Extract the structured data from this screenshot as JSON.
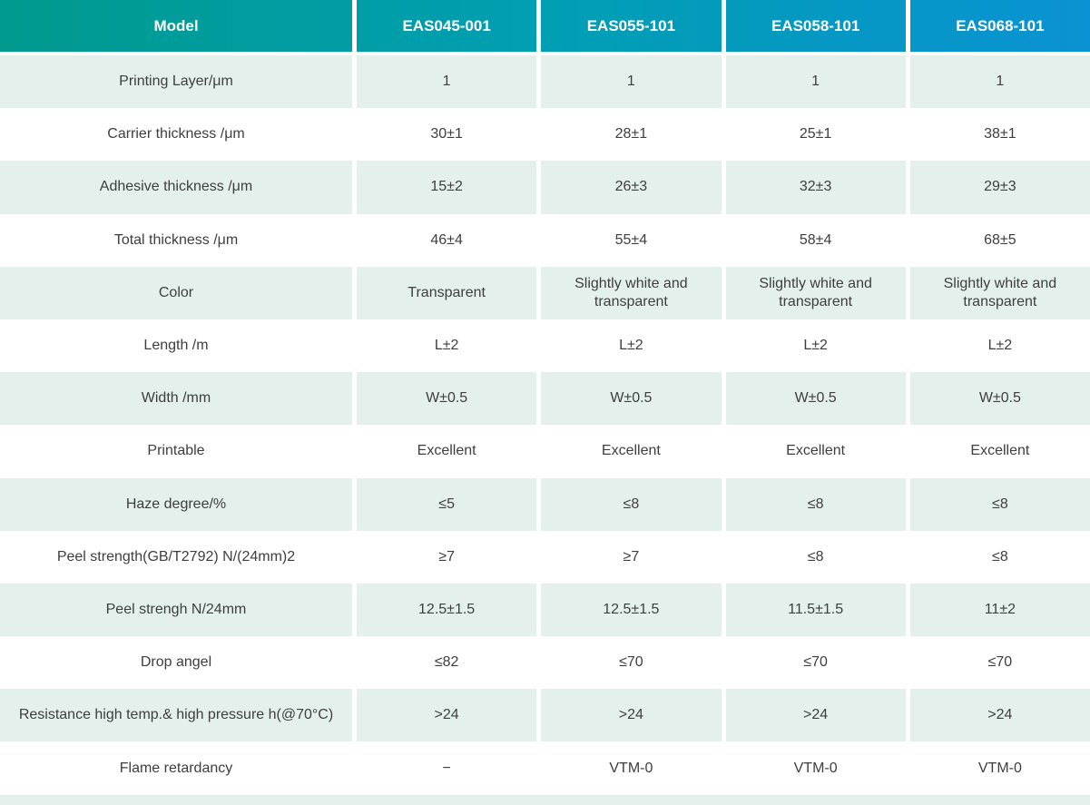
{
  "table": {
    "header": {
      "model_label": "Model",
      "columns": [
        "EAS045-001",
        "EAS055-101",
        "EAS058-101",
        "EAS068-101"
      ]
    },
    "rows": [
      {
        "label": "Printing Layer/μm",
        "values": [
          "1",
          "1",
          "1",
          "1"
        ]
      },
      {
        "label": "Carrier thickness /μm",
        "values": [
          "30±1",
          "28±1",
          "25±1",
          "38±1"
        ]
      },
      {
        "label": "Adhesive thickness /μm",
        "values": [
          "15±2",
          "26±3",
          "32±3",
          "29±3"
        ]
      },
      {
        "label": "Total thickness /μm",
        "values": [
          "46±4",
          "55±4",
          "58±4",
          "68±5"
        ]
      },
      {
        "label": "Color",
        "values": [
          "Transparent",
          "Slightly white and transparent",
          "Slightly white and transparent",
          "Slightly white and transparent"
        ]
      },
      {
        "label": "Length /m",
        "values": [
          "L±2",
          "L±2",
          "L±2",
          "L±2"
        ]
      },
      {
        "label": "Width /mm",
        "values": [
          "W±0.5",
          "W±0.5",
          "W±0.5",
          "W±0.5"
        ]
      },
      {
        "label": "Printable",
        "values": [
          "Excellent",
          "Excellent",
          "Excellent",
          "Excellent"
        ]
      },
      {
        "label": "Haze degree/%",
        "values": [
          "≤5",
          "≤8",
          "≤8",
          "≤8"
        ]
      },
      {
        "label": "Peel strength(GB/T2792)  N/(24mm)2",
        "values": [
          "≥7",
          "≥7",
          "≤8",
          "≤8"
        ]
      },
      {
        "label": "Peel strengh N/24mm",
        "values": [
          "12.5±1.5",
          "12.5±1.5",
          "11.5±1.5",
          "11±2"
        ]
      },
      {
        "label": "Drop angel",
        "values": [
          "≤82",
          "≤70",
          "≤70",
          "≤70"
        ]
      },
      {
        "label": "Resistance high temp.& high pressure h(@70°C)",
        "values": [
          ">24",
          ">24",
          ">24",
          ">24"
        ]
      },
      {
        "label": "Flame retardancy",
        "values": [
          "−",
          "VTM-0",
          "VTM-0",
          "VTM-0"
        ]
      }
    ],
    "colors": {
      "header_gradient_start": "#009a8e",
      "header_gradient_mid": "#009fb3",
      "header_gradient_end": "#0a92d2",
      "header_text": "#ffffff",
      "shaded_row_bg": "#e4f0ec",
      "text": "#3e3e3e"
    }
  }
}
